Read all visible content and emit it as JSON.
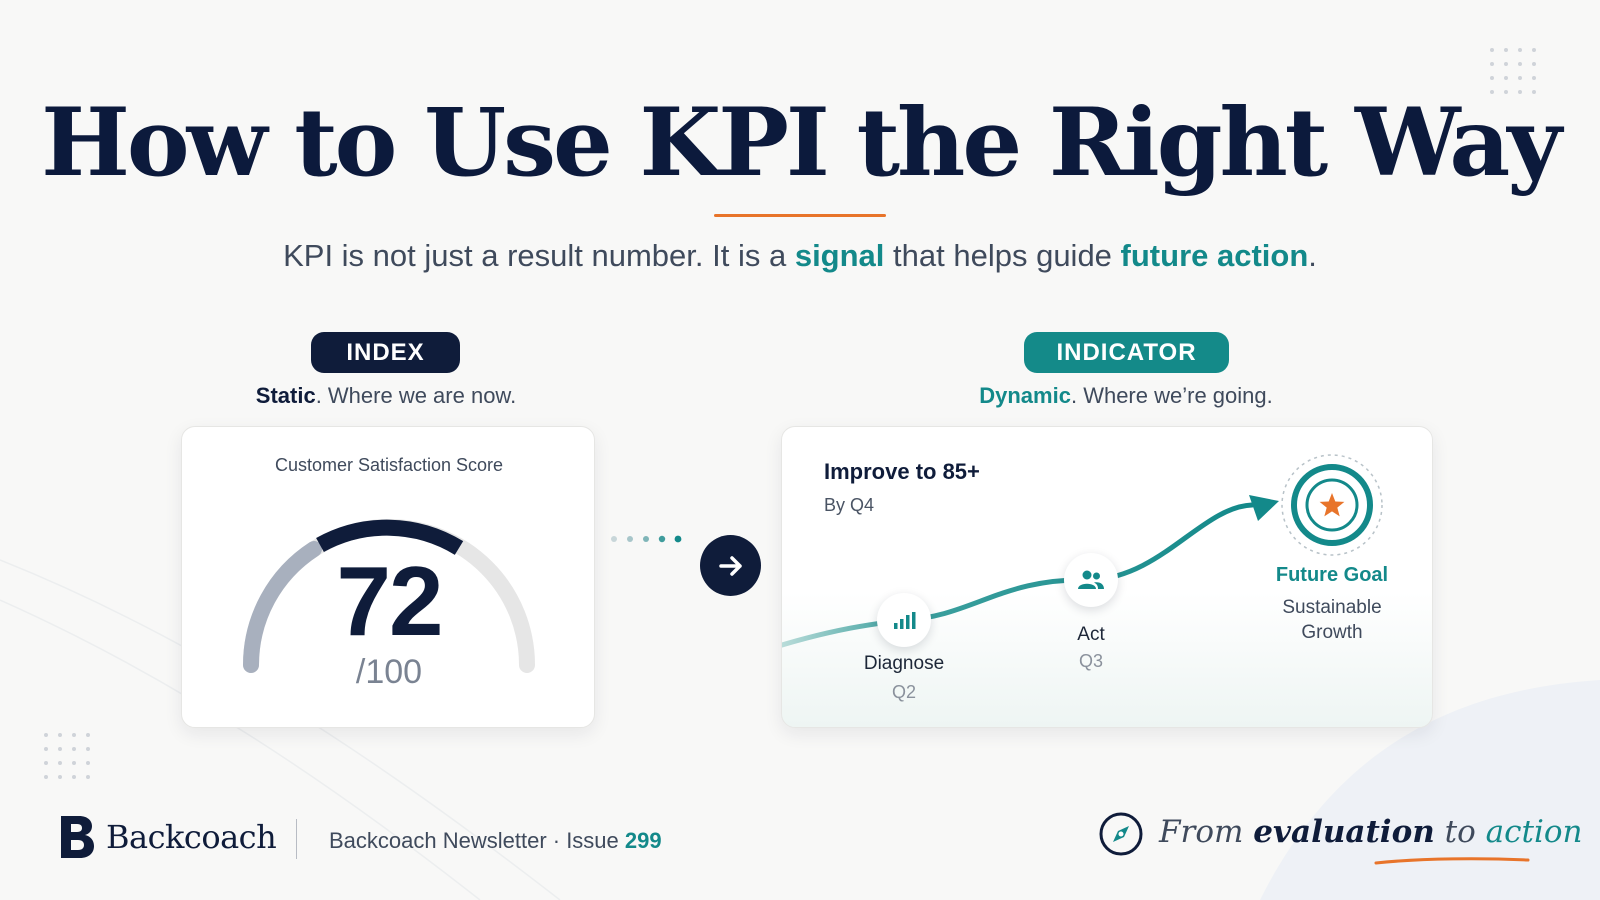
{
  "header": {
    "title": "How to Use KPI the Right Way",
    "subtitle_part1": "KPI is not just a result number. It is a ",
    "subtitle_hl1": "signal",
    "subtitle_part2": " that helps guide ",
    "subtitle_hl2": "future action",
    "subtitle_part3": "."
  },
  "index": {
    "pill": "INDEX",
    "caption_bold": "Static",
    "caption_rest": ". Where we are now.",
    "card_label": "Customer Satisfaction Score",
    "score": "72",
    "score_max": "/100",
    "gauge_value": 72,
    "gauge_max": 100
  },
  "indicator": {
    "pill": "INDICATOR",
    "caption_bold": "Dynamic",
    "caption_rest": ". Where we’re going.",
    "goal_title": "Improve to 85+",
    "goal_sub": "By Q4",
    "steps": [
      {
        "label": "Diagnose",
        "when": "Q2",
        "icon": "bar-chart-icon"
      },
      {
        "label": "Act",
        "when": "Q3",
        "icon": "people-icon"
      }
    ],
    "future_goal": "Future Goal",
    "future_sub": "Sustainable Growth"
  },
  "footer": {
    "brand": "Backcoach",
    "newsletter": "Backcoach Newsletter · Issue ",
    "issue": "299",
    "tagline_a": "From ",
    "tagline_b": "evaluation",
    "tagline_c": " to ",
    "tagline_d": "action"
  },
  "colors": {
    "navy": "#0f1c3a",
    "teal": "#13898a",
    "orange": "#e8742a",
    "background": "#f8f8f7"
  }
}
